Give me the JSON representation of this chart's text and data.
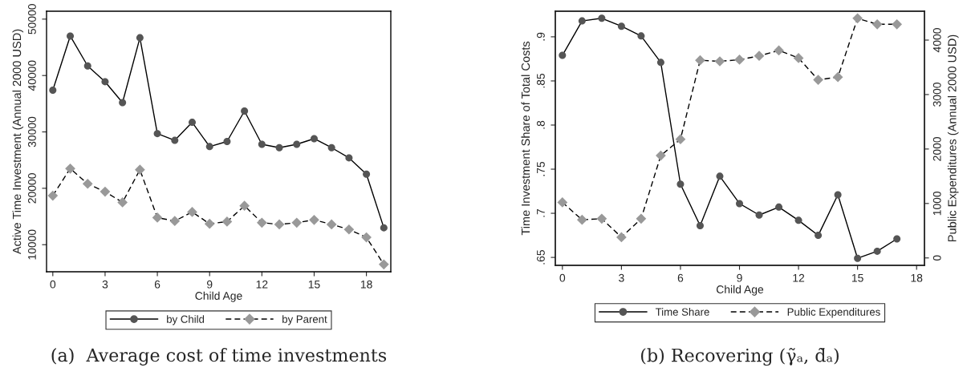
{
  "chart_data": [
    {
      "type": "line",
      "xlabel": "Child Age",
      "ylabel": "Active Time Investment (Annual 2000 USD)",
      "x": [
        0,
        1,
        2,
        3,
        4,
        5,
        6,
        7,
        8,
        9,
        10,
        11,
        12,
        13,
        14,
        15,
        16,
        17,
        18,
        19
      ],
      "series": [
        {
          "name": "by Child",
          "color": "#555555",
          "marker": "circle",
          "line_style": "solid",
          "values": [
            37400,
            47000,
            41700,
            38900,
            35200,
            46700,
            29700,
            28500,
            31700,
            27400,
            28300,
            33700,
            27800,
            27200,
            27800,
            28800,
            27200,
            25400,
            22500,
            13000
          ]
        },
        {
          "name": "by Parent",
          "color": "#999999",
          "marker": "diamond",
          "line_style": "dashed",
          "values": [
            18700,
            23500,
            20800,
            19400,
            17500,
            23300,
            14800,
            14200,
            15800,
            13700,
            14100,
            16900,
            13900,
            13600,
            13900,
            14400,
            13600,
            12700,
            11300,
            6500
          ]
        }
      ],
      "xlim": [
        -0.36,
        19.4
      ],
      "xticks": [
        0,
        3,
        6,
        9,
        12,
        15,
        18
      ],
      "ylim": [
        5200,
        51400
      ],
      "yticks": [
        10000,
        20000,
        30000,
        40000,
        50000
      ],
      "grid": false,
      "legend": "bottom",
      "annotations": [
        "(a)  Average cost of time investments"
      ]
    },
    {
      "type": "line",
      "xlabel": "Child Age",
      "ylabel": "Time Investment Share of Total Costs",
      "y2label": "Public Expenditures (Annual 2000 USD)",
      "x": [
        0,
        1,
        2,
        3,
        4,
        5,
        6,
        7,
        8,
        9,
        10,
        11,
        12,
        13,
        14,
        15,
        16,
        17
      ],
      "series": [
        {
          "name": "Time Share",
          "color": "#555555",
          "marker": "circle",
          "line_style": "solid",
          "values": [
            0.879,
            0.918,
            0.921,
            0.912,
            0.901,
            0.871,
            0.733,
            0.686,
            0.742,
            0.711,
            0.698,
            0.707,
            0.692,
            0.675,
            0.721,
            0.649,
            0.657,
            0.671
          ]
        },
        {
          "name": "Public Expenditures",
          "color": "#999999",
          "marker": "diamond",
          "line_style": "dashed",
          "axis": "y2",
          "values": [
            1020,
            700,
            720,
            380,
            720,
            1880,
            2180,
            3630,
            3610,
            3640,
            3710,
            3810,
            3670,
            3270,
            3320,
            4400,
            4290,
            4290
          ]
        }
      ],
      "xlim": [
        -0.36,
        18.4
      ],
      "xticks": [
        0,
        3,
        6,
        9,
        12,
        15,
        18
      ],
      "ylim": [
        0.641,
        0.929
      ],
      "yticks": [
        {
          "value": 0.65,
          "label": ".65"
        },
        {
          "value": 0.7,
          "label": ".7"
        },
        {
          "value": 0.75,
          "label": ".75"
        },
        {
          "value": 0.8,
          "label": ".8"
        },
        {
          "value": 0.85,
          "label": ".85"
        },
        {
          "value": 0.9,
          "label": ".9"
        }
      ],
      "y2lim": [
        -136,
        4530
      ],
      "y2ticks": [
        0,
        1000,
        2000,
        3000,
        4000
      ],
      "grid": false,
      "legend": "bottom",
      "annotations": [
        "(b) Recovering (γ̃ₐ, d̃ₐ)"
      ]
    }
  ]
}
